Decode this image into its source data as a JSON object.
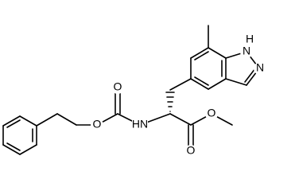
{
  "atoms": {
    "cbz_carbonyl_o": "O",
    "cbz_ester_o": "O",
    "amide_n": "HN",
    "ester_carbonyl_o": "O",
    "ester_o": "O",
    "indazole_h": "H",
    "indazole_n1": "N",
    "indazole_n2": "N"
  }
}
